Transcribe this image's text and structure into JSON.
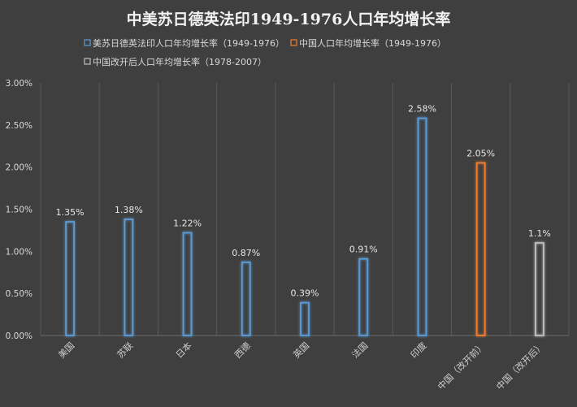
{
  "chart_data": {
    "type": "bar",
    "title": "中美苏日德英法印1949-1976人口年均增长率",
    "xlabel": "",
    "ylabel": "",
    "ylim": [
      0,
      0.03
    ],
    "y_ticks": [
      "0.00%",
      "0.50%",
      "1.00%",
      "1.50%",
      "2.00%",
      "2.50%",
      "3.00%"
    ],
    "y_tick_values": [
      0,
      0.005,
      0.01,
      0.015,
      0.02,
      0.025,
      0.03
    ],
    "grid": "vertical-lines",
    "legend_position": "top-left",
    "categories": [
      "美国",
      "苏联",
      "日本",
      "西德",
      "英国",
      "法国",
      "印度",
      "中国（改开前）",
      "中国（改开后）"
    ],
    "series": [
      {
        "name": "美苏日德英法印人口年均增长率（1949-1976）",
        "color": "#5b9bd5",
        "values": [
          0.0135,
          0.0138,
          0.0122,
          0.0087,
          0.0039,
          0.0091,
          0.0258,
          null,
          null
        ],
        "labels": [
          "1.35%",
          "1.38%",
          "1.22%",
          "0.87%",
          "0.39%",
          "0.91%",
          "2.58%",
          "",
          ""
        ]
      },
      {
        "name": "中国人口年均增长率（1949-1976）",
        "color": "#ed7d31",
        "values": [
          null,
          null,
          null,
          null,
          null,
          null,
          null,
          0.0205,
          null
        ],
        "labels": [
          "",
          "",
          "",
          "",
          "",
          "",
          "",
          "2.05%",
          ""
        ]
      },
      {
        "name": "中国改开后人口年均增长率（1978-2007）",
        "color": "#bfbfbf",
        "values": [
          null,
          null,
          null,
          null,
          null,
          null,
          null,
          null,
          0.011
        ],
        "labels": [
          "",
          "",
          "",
          "",
          "",
          "",
          "",
          "",
          "1.1%"
        ]
      }
    ]
  }
}
